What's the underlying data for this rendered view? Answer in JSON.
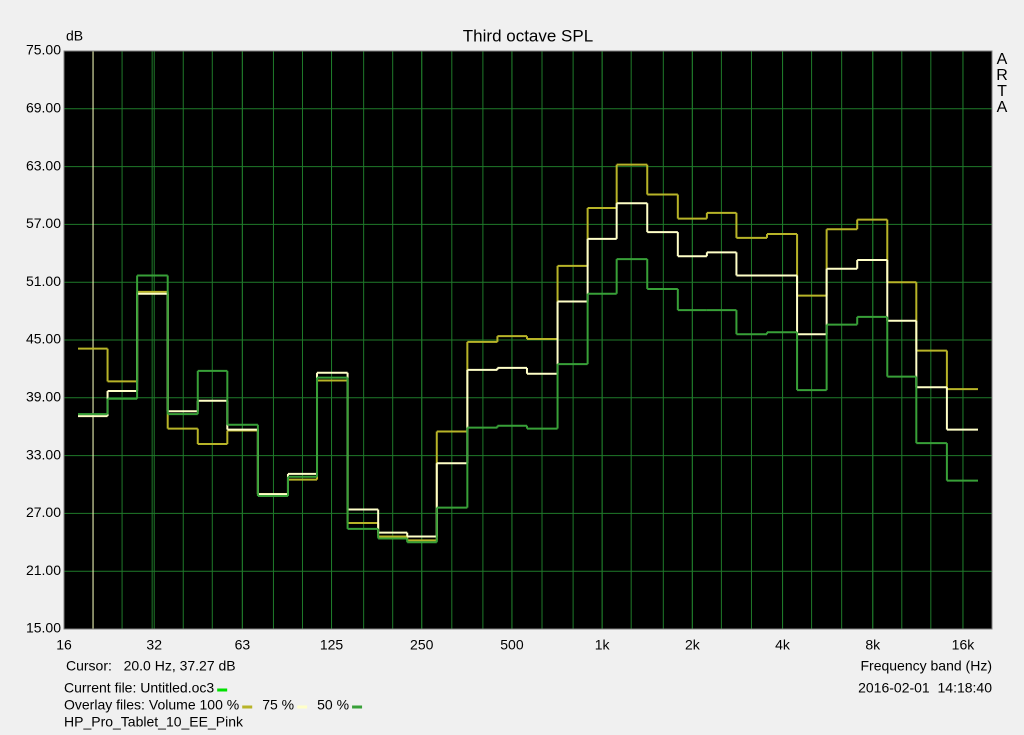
{
  "chart_data": {
    "type": "step",
    "title": "Third octave SPL",
    "ylabel": "dB",
    "xlabel": "Frequency band (Hz)",
    "watermark": "ARTA",
    "log_x": true,
    "grid": true,
    "xlim": [
      16,
      20000
    ],
    "xticks": [
      16,
      32,
      63,
      125,
      250,
      500,
      {
        "value": 1000,
        "label": "1k"
      },
      {
        "value": 2000,
        "label": "2k"
      },
      {
        "value": 4000,
        "label": "4k"
      },
      {
        "value": 8000,
        "label": "8k"
      },
      {
        "value": 16000,
        "label": "16k"
      }
    ],
    "ylim": [
      15,
      75
    ],
    "yticks": [
      {
        "value": 15,
        "label": "15.00"
      },
      {
        "value": 21,
        "label": "21.00"
      },
      {
        "value": 27,
        "label": "27.00"
      },
      {
        "value": 33,
        "label": "33.00"
      },
      {
        "value": 39,
        "label": "39.00"
      },
      {
        "value": 45,
        "label": "45.00"
      },
      {
        "value": 51,
        "label": "51.00"
      },
      {
        "value": 57,
        "label": "57.00"
      },
      {
        "value": 63,
        "label": "63.00"
      },
      {
        "value": 69,
        "label": "69.00"
      },
      {
        "value": 75,
        "label": "75.00"
      }
    ],
    "x": [
      20,
      25,
      31.5,
      40,
      50,
      63,
      80,
      100,
      125,
      160,
      200,
      250,
      315,
      400,
      500,
      630,
      800,
      1000,
      1250,
      1600,
      2000,
      2500,
      3150,
      4000,
      5000,
      6300,
      8000,
      10000,
      12500,
      16000
    ],
    "series": [
      {
        "name": "Volume 100 %",
        "color": "#b8b428",
        "values": [
          44.1,
          40.7,
          50.0,
          35.8,
          34.2,
          35.6,
          29.0,
          30.5,
          40.8,
          26.0,
          24.6,
          24.2,
          35.5,
          44.8,
          45.4,
          45.1,
          52.7,
          58.7,
          63.2,
          60.1,
          57.6,
          58.2,
          55.6,
          56.0,
          49.6,
          56.5,
          57.5,
          51.0,
          43.9,
          39.9
        ]
      },
      {
        "name": "75 %",
        "color": "#ffffc8",
        "values": [
          37.1,
          39.7,
          49.8,
          37.6,
          38.7,
          35.7,
          29.0,
          31.1,
          41.6,
          27.4,
          25.0,
          24.6,
          32.2,
          41.9,
          42.1,
          41.5,
          49.0,
          55.5,
          59.2,
          56.2,
          53.7,
          54.1,
          51.7,
          51.7,
          45.6,
          52.4,
          53.3,
          47.0,
          40.1,
          35.7
        ]
      },
      {
        "name": "50 %",
        "color": "#38a038",
        "values": [
          37.3,
          38.9,
          51.7,
          37.3,
          41.8,
          36.2,
          28.8,
          30.8,
          41.1,
          25.4,
          24.4,
          24.0,
          27.6,
          35.9,
          36.1,
          35.8,
          42.5,
          49.8,
          53.4,
          50.3,
          48.1,
          48.1,
          45.6,
          45.8,
          39.8,
          46.6,
          47.4,
          41.2,
          34.3,
          30.4
        ]
      }
    ],
    "cursor_x": 20,
    "cursor_label": "Cursor:   20.0 Hz, 37.27 dB",
    "current_file": "Current file: Untitled.oc3",
    "overlay_label": "Overlay files:",
    "file_name": "HP_Pro_Tablet_10_EE_Pink",
    "timestamp": "2016-02-01  14:18:40"
  }
}
